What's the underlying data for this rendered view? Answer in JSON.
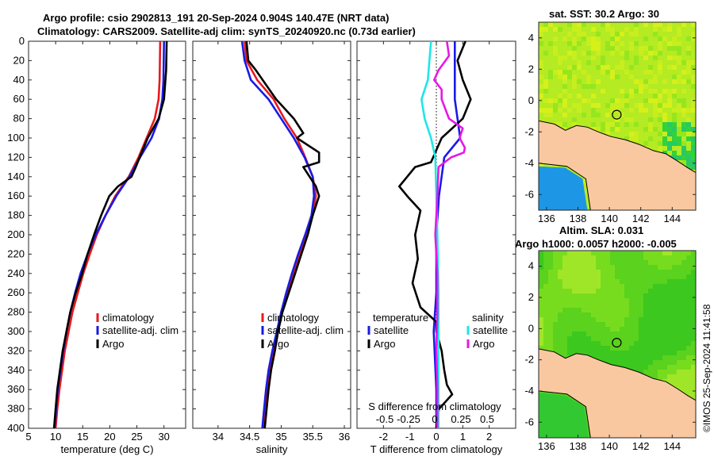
{
  "header": {
    "line1": "Argo profile: csio 2902813_191 20-Sep-2024 0.904S 140.47E (NRT data)",
    "line2": "Climatology: CARS2009. Satellite-adj clim: synTS_20240920.nc (0.73d earlier)"
  },
  "sst_title": "sat. SST: 30.2 Argo: 30",
  "sla_title_1": "Altim. SLA: 0.031",
  "sla_title_2": "Argo h1000: 0.0057 h2000: -0.005",
  "side_note": "©IMOS 25-Sep-2024 11:41:58",
  "colors": {
    "climatology": "#e8191e",
    "satellite": "#1a1ae6",
    "argo": "#000000",
    "sal_satellite": "#1fe6e6",
    "sal_argo": "#e619e6",
    "land": "#fac8a0",
    "sst_bg": "#a8e61e",
    "sla_bg": "#5ad21e"
  },
  "legend": {
    "climatology": "climatology",
    "satellite_adj": "satellite-adj. clim",
    "argo": "Argo",
    "temperature": "temperature",
    "salinity": "salinity",
    "satellite": "satellite"
  },
  "chart_data": [
    {
      "type": "line",
      "name": "temperature-profile",
      "xlabel": "temperature (deg C)",
      "ylabel": "",
      "xlim": [
        5,
        34
      ],
      "ylim": [
        400,
        0
      ],
      "xticks": [
        5,
        10,
        15,
        20,
        25,
        30
      ],
      "yticks": [
        0,
        20,
        40,
        60,
        80,
        100,
        120,
        140,
        160,
        180,
        200,
        220,
        240,
        260,
        280,
        300,
        320,
        340,
        360,
        380,
        400
      ],
      "series": [
        {
          "name": "climatology",
          "depth": [
            0,
            40,
            60,
            80,
            100,
            120,
            140,
            160,
            180,
            200,
            220,
            240,
            260,
            280,
            300,
            320,
            340,
            360,
            380,
            400
          ],
          "values": [
            29.3,
            29.2,
            29.0,
            28.3,
            26.8,
            25.3,
            23.5,
            21.0,
            19.2,
            17.6,
            16.3,
            15.1,
            14.1,
            13.1,
            12.4,
            11.7,
            11.2,
            10.7,
            10.3,
            10.0
          ]
        },
        {
          "name": "satellite-adj. clim",
          "depth": [
            0,
            40,
            60,
            80,
            100,
            120,
            140,
            160,
            180,
            200,
            220,
            240,
            260,
            280,
            300,
            320,
            340,
            360,
            380,
            400
          ],
          "values": [
            30.0,
            29.9,
            29.7,
            29.1,
            27.7,
            25.6,
            23.6,
            21.2,
            19.2,
            17.4,
            15.9,
            14.6,
            13.6,
            12.7,
            12.0,
            11.4,
            10.9,
            10.4,
            10.1,
            9.8
          ]
        },
        {
          "name": "Argo",
          "depth": [
            0,
            30,
            60,
            80,
            100,
            120,
            130,
            140,
            150,
            160,
            180,
            200,
            220,
            240,
            260,
            280,
            300,
            320,
            340,
            360,
            380,
            400
          ],
          "values": [
            30.5,
            30.4,
            30.0,
            29.0,
            27.0,
            25.5,
            24.8,
            24.0,
            21.5,
            19.9,
            18.4,
            17.1,
            15.9,
            14.9,
            13.7,
            12.7,
            12.0,
            11.3,
            10.8,
            10.3,
            10.0,
            9.7
          ]
        }
      ]
    },
    {
      "type": "line",
      "name": "salinity-profile",
      "xlabel": "salinity",
      "xlim": [
        33.6,
        36.1
      ],
      "ylim": [
        400,
        0
      ],
      "xticks": [
        34,
        34.5,
        35,
        35.5,
        36
      ],
      "series": [
        {
          "name": "climatology",
          "depth": [
            0,
            20,
            40,
            60,
            80,
            100,
            120,
            140,
            160,
            180,
            200,
            220,
            240,
            260,
            280,
            300,
            320,
            340,
            360,
            380,
            400
          ],
          "values": [
            34.42,
            34.45,
            34.62,
            34.88,
            35.05,
            35.25,
            35.38,
            35.5,
            35.55,
            35.5,
            35.4,
            35.3,
            35.2,
            35.1,
            35.0,
            34.95,
            34.88,
            34.82,
            34.78,
            34.75,
            34.72
          ]
        },
        {
          "name": "satellite-adj. clim",
          "depth": [
            0,
            20,
            40,
            60,
            80,
            100,
            120,
            140,
            160,
            180,
            200,
            220,
            240,
            260,
            280,
            300,
            320,
            340,
            360,
            380,
            400
          ],
          "values": [
            34.38,
            34.42,
            34.52,
            34.8,
            35.0,
            35.2,
            35.37,
            35.5,
            35.52,
            35.48,
            35.38,
            35.27,
            35.17,
            35.08,
            35.0,
            34.93,
            34.86,
            34.8,
            34.76,
            34.73,
            34.7
          ]
        },
        {
          "name": "Argo",
          "depth": [
            0,
            20,
            30,
            60,
            80,
            95,
            100,
            115,
            125,
            130,
            150,
            160,
            180,
            200,
            220,
            240,
            260,
            280,
            300,
            320,
            340,
            360,
            380,
            400
          ],
          "values": [
            34.45,
            34.48,
            34.6,
            34.92,
            35.2,
            35.35,
            35.25,
            35.6,
            35.6,
            35.35,
            35.55,
            35.6,
            35.5,
            35.42,
            35.32,
            35.22,
            35.12,
            35.02,
            34.95,
            34.9,
            34.84,
            34.8,
            34.77,
            34.74
          ]
        }
      ]
    },
    {
      "type": "line",
      "name": "difference-profile",
      "xlabel": "T difference from climatology",
      "xlabel_top": "S difference from climatology",
      "xlim": [
        -3,
        3
      ],
      "ylim": [
        400,
        0
      ],
      "xticks": [
        -2,
        -1,
        0,
        1,
        2
      ],
      "s_ticks": [
        "-0.5",
        "-0.25",
        "0",
        "0.25",
        "0.5"
      ],
      "series": [
        {
          "name": "temperature satellite",
          "depth": [
            0,
            30,
            60,
            80,
            100,
            120,
            160,
            200,
            260,
            300,
            360,
            400
          ],
          "values": [
            0.7,
            0.7,
            0.7,
            0.8,
            0.9,
            0.3,
            0.1,
            0.0,
            0.0,
            -0.1,
            0.0,
            0.0
          ]
        },
        {
          "name": "temperature Argo",
          "depth": [
            0,
            20,
            40,
            60,
            80,
            100,
            125,
            130,
            150,
            160,
            175,
            200,
            225,
            250,
            275,
            290,
            300,
            320,
            340,
            355,
            365,
            380,
            400
          ],
          "values": [
            1.1,
            0.8,
            1.0,
            1.3,
            1.0,
            0.2,
            -0.2,
            -0.8,
            -1.4,
            -1.1,
            -0.6,
            -0.8,
            -0.7,
            -0.9,
            -0.6,
            0.0,
            0.0,
            0.2,
            0.3,
            0.4,
            0.6,
            0.1,
            0.0
          ]
        },
        {
          "name": "salinity satellite",
          "depth": [
            0,
            40,
            60,
            80,
            100,
            120,
            160,
            200,
            260,
            300,
            360,
            400
          ],
          "values": [
            -0.05,
            -0.08,
            -0.14,
            -0.11,
            -0.05,
            -0.01,
            0.0,
            0.01,
            0.02,
            0.02,
            0.02,
            0.02
          ]
        },
        {
          "name": "salinity Argo",
          "depth": [
            0,
            15,
            30,
            40,
            50,
            60,
            80,
            90,
            100,
            110,
            115,
            120,
            130,
            160,
            200,
            240,
            280,
            320,
            360,
            400
          ],
          "values": [
            0.1,
            0.12,
            0.02,
            -0.02,
            0.05,
            0.05,
            0.12,
            0.25,
            0.22,
            0.27,
            0.26,
            0.14,
            0.02,
            0.01,
            -0.01,
            0.01,
            0.01,
            0.0,
            0.01,
            0.01
          ]
        }
      ]
    },
    {
      "type": "heatmap",
      "name": "sst-map",
      "title": "sat. SST: 30.2 Argo: 30",
      "xlim": [
        135.5,
        145.5
      ],
      "ylim": [
        -7,
        5
      ],
      "xticks": [
        136,
        138,
        140,
        142,
        144
      ],
      "yticks": [
        -6,
        -4,
        -2,
        0,
        2,
        4
      ],
      "marker": {
        "lon": 140.47,
        "lat": -0.904
      }
    },
    {
      "type": "heatmap",
      "name": "sla-map",
      "title": "Altim. SLA: 0.031",
      "xlim": [
        135.5,
        145.5
      ],
      "ylim": [
        -7,
        5
      ],
      "xticks": [
        136,
        138,
        140,
        142,
        144
      ],
      "yticks": [
        -6,
        -4,
        -2,
        0,
        2,
        4
      ],
      "marker": {
        "lon": 140.47,
        "lat": -0.904
      }
    }
  ]
}
